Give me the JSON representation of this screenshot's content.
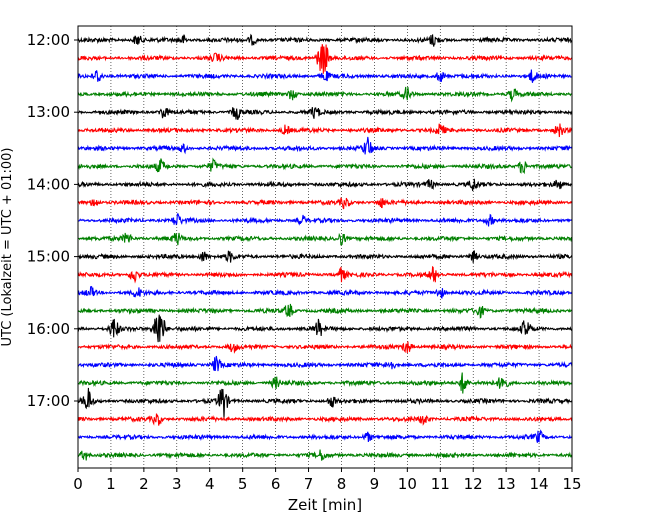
{
  "chart_data": {
    "type": "line",
    "title": "",
    "xlabel": "Zeit  [min]",
    "ylabel": "UTC (Lokalzeit = UTC + 01:00)",
    "xlim": [
      0,
      15
    ],
    "x_ticks": [
      "0",
      "1",
      "2",
      "3",
      "4",
      "5",
      "6",
      "7",
      "8",
      "9",
      "10",
      "11",
      "12",
      "13",
      "14",
      "15"
    ],
    "y_tick_labels": [
      "12:00",
      "13:00",
      "14:00",
      "15:00",
      "16:00",
      "17:00"
    ],
    "grid": "vertical dotted",
    "trace_minutes_per_row": 15,
    "colors": [
      "#000000",
      "#ff0000",
      "#0000ff",
      "#008000"
    ],
    "rows": [
      {
        "start": "12:00",
        "color": "#000000",
        "events": [
          [
            1.8,
            0.6
          ],
          [
            3.2,
            0.5
          ],
          [
            5.3,
            0.5
          ],
          [
            10.8,
            0.6
          ]
        ]
      },
      {
        "start": "12:15",
        "color": "#ff0000",
        "events": [
          [
            7.5,
            1.6
          ],
          [
            7.35,
            1.0
          ],
          [
            4.2,
            0.4
          ]
        ]
      },
      {
        "start": "12:30",
        "color": "#0000ff",
        "events": [
          [
            0.6,
            0.8
          ],
          [
            7.5,
            0.5
          ],
          [
            11.0,
            0.6
          ],
          [
            13.8,
            0.6
          ]
        ]
      },
      {
        "start": "12:45",
        "color": "#008000",
        "events": [
          [
            6.5,
            0.6
          ],
          [
            10.0,
            0.7
          ],
          [
            13.2,
            0.6
          ]
        ]
      },
      {
        "start": "13:00",
        "color": "#000000",
        "events": [
          [
            2.6,
            0.7
          ],
          [
            4.8,
            0.8
          ],
          [
            7.2,
            0.6
          ]
        ]
      },
      {
        "start": "13:15",
        "color": "#ff0000",
        "events": [
          [
            6.3,
            0.5
          ],
          [
            11.0,
            0.6
          ],
          [
            14.6,
            0.7
          ]
        ]
      },
      {
        "start": "13:30",
        "color": "#0000ff",
        "events": [
          [
            8.8,
            1.1
          ],
          [
            3.2,
            0.4
          ]
        ]
      },
      {
        "start": "13:45",
        "color": "#008000",
        "events": [
          [
            2.5,
            0.7
          ],
          [
            4.1,
            0.6
          ],
          [
            13.5,
            0.8
          ]
        ]
      },
      {
        "start": "14:00",
        "color": "#000000",
        "events": [
          [
            10.7,
            0.5
          ],
          [
            12.0,
            0.6
          ],
          [
            14.6,
            0.5
          ]
        ]
      },
      {
        "start": "14:15",
        "color": "#ff0000",
        "events": [
          [
            0.5,
            0.5
          ],
          [
            8.1,
            0.6
          ],
          [
            9.2,
            0.5
          ]
        ]
      },
      {
        "start": "14:30",
        "color": "#0000ff",
        "events": [
          [
            3.0,
            0.7
          ],
          [
            6.8,
            0.5
          ],
          [
            12.5,
            0.6
          ]
        ]
      },
      {
        "start": "14:45",
        "color": "#008000",
        "events": [
          [
            1.5,
            0.6
          ],
          [
            3.0,
            0.6
          ],
          [
            8.0,
            0.7
          ]
        ]
      },
      {
        "start": "15:00",
        "color": "#000000",
        "events": [
          [
            3.8,
            0.6
          ],
          [
            4.6,
            0.5
          ],
          [
            12.0,
            0.6
          ]
        ]
      },
      {
        "start": "15:15",
        "color": "#ff0000",
        "events": [
          [
            1.7,
            0.8
          ],
          [
            8.0,
            0.7
          ],
          [
            10.8,
            0.8
          ]
        ]
      },
      {
        "start": "15:30",
        "color": "#0000ff",
        "events": [
          [
            0.4,
            0.5
          ],
          [
            1.8,
            0.5
          ],
          [
            11.0,
            0.6
          ]
        ]
      },
      {
        "start": "15:45",
        "color": "#008000",
        "events": [
          [
            6.4,
            0.8
          ],
          [
            12.2,
            0.6
          ]
        ]
      },
      {
        "start": "16:00",
        "color": "#000000",
        "events": [
          [
            1.1,
            1.2
          ],
          [
            2.4,
            1.9
          ],
          [
            2.55,
            1.2
          ],
          [
            7.3,
            0.9
          ],
          [
            13.6,
            1.0
          ]
        ]
      },
      {
        "start": "16:15",
        "color": "#ff0000",
        "events": [
          [
            4.7,
            0.5
          ],
          [
            10.0,
            0.7
          ]
        ]
      },
      {
        "start": "16:30",
        "color": "#0000ff",
        "events": [
          [
            4.2,
            0.9
          ],
          [
            9.5,
            0.5
          ]
        ]
      },
      {
        "start": "16:45",
        "color": "#008000",
        "events": [
          [
            6.0,
            0.6
          ],
          [
            11.7,
            1.2
          ],
          [
            12.9,
            1.0
          ]
        ]
      },
      {
        "start": "17:00",
        "color": "#000000",
        "events": [
          [
            0.3,
            1.3
          ],
          [
            4.4,
            2.0
          ],
          [
            7.7,
            0.6
          ]
        ]
      },
      {
        "start": "17:15",
        "color": "#ff0000",
        "events": [
          [
            2.4,
            0.7
          ],
          [
            10.5,
            0.6
          ]
        ]
      },
      {
        "start": "17:30",
        "color": "#0000ff",
        "events": [
          [
            8.8,
            0.5
          ],
          [
            14.0,
            0.6
          ]
        ]
      },
      {
        "start": "17:45",
        "color": "#008000",
        "events": [
          [
            0.2,
            0.6
          ],
          [
            7.4,
            0.5
          ]
        ]
      }
    ]
  }
}
